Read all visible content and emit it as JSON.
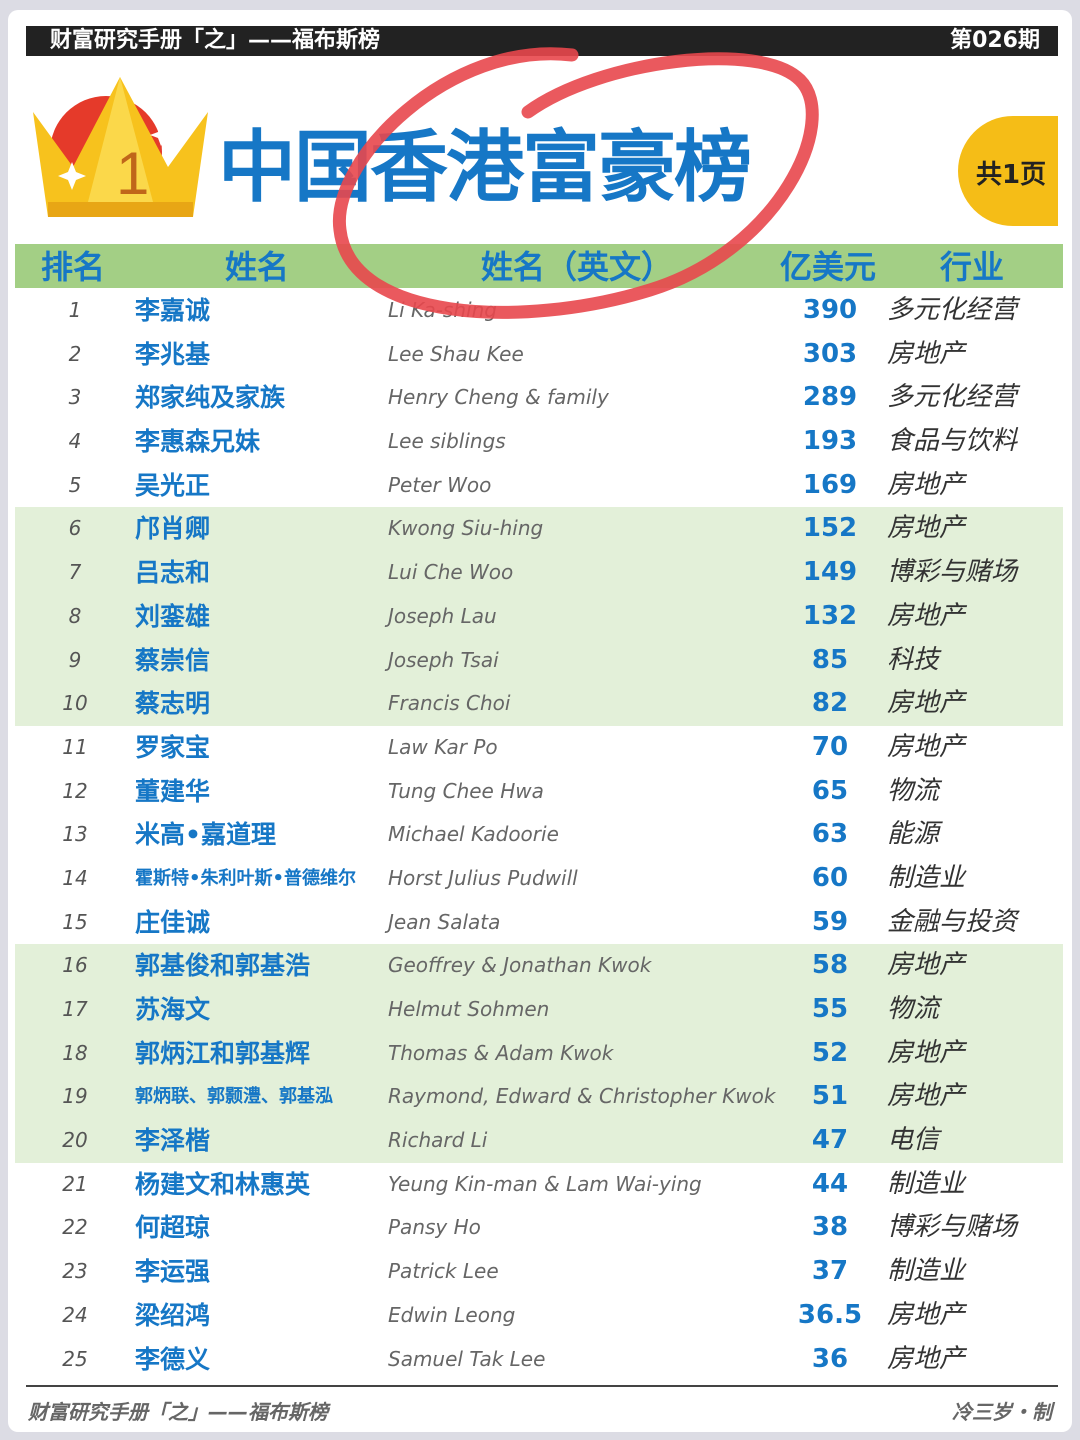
{
  "header": {
    "series": "财富研究手册「之」——福布斯榜",
    "issue": "第026期"
  },
  "title": "中国香港富豪榜",
  "crown_number": "1",
  "pages": "共1页",
  "columns": {
    "rank": "排名",
    "name": "姓名",
    "name_en": "姓名（英文）",
    "value": "亿美元",
    "industry": "行业"
  },
  "colors": {
    "accent_blue": "#1677c6",
    "header_green": "#a3cf85",
    "band_green": "#e3f0d9",
    "badge_yellow": "#f5bd17",
    "annotation_red": "#e8474c"
  },
  "rows": [
    {
      "rank": "1",
      "name": "李嘉诚",
      "name_en": "Li Ka-shing",
      "value": "390",
      "industry": "多元化经营"
    },
    {
      "rank": "2",
      "name": "李兆基",
      "name_en": "Lee Shau Kee",
      "value": "303",
      "industry": "房地产"
    },
    {
      "rank": "3",
      "name": "郑家纯及家族",
      "name_en": "Henry Cheng & family",
      "value": "289",
      "industry": "多元化经营"
    },
    {
      "rank": "4",
      "name": "李惠森兄妹",
      "name_en": "Lee siblings",
      "value": "193",
      "industry": "食品与饮料"
    },
    {
      "rank": "5",
      "name": "吴光正",
      "name_en": "Peter Woo",
      "value": "169",
      "industry": "房地产"
    },
    {
      "rank": "6",
      "name": "邝肖卿",
      "name_en": "Kwong Siu-hing",
      "value": "152",
      "industry": "房地产"
    },
    {
      "rank": "7",
      "name": "吕志和",
      "name_en": "Lui Che Woo",
      "value": "149",
      "industry": "博彩与赌场"
    },
    {
      "rank": "8",
      "name": "刘銮雄",
      "name_en": "Joseph Lau",
      "value": "132",
      "industry": "房地产"
    },
    {
      "rank": "9",
      "name": "蔡崇信",
      "name_en": "Joseph Tsai",
      "value": "85",
      "industry": "科技"
    },
    {
      "rank": "10",
      "name": "蔡志明",
      "name_en": "Francis Choi",
      "value": "82",
      "industry": "房地产"
    },
    {
      "rank": "11",
      "name": "罗家宝",
      "name_en": "Law Kar Po",
      "value": "70",
      "industry": "房地产"
    },
    {
      "rank": "12",
      "name": "董建华",
      "name_en": "Tung Chee Hwa",
      "value": "65",
      "industry": "物流"
    },
    {
      "rank": "13",
      "name": "米高•嘉道理",
      "name_en": "Michael Kadoorie",
      "value": "63",
      "industry": "能源"
    },
    {
      "rank": "14",
      "name": "霍斯特•朱利叶斯•普德维尔",
      "name_en": "Horst Julius Pudwill",
      "value": "60",
      "industry": "制造业"
    },
    {
      "rank": "15",
      "name": "庄佳诚",
      "name_en": "Jean Salata",
      "value": "59",
      "industry": "金融与投资"
    },
    {
      "rank": "16",
      "name": "郭基俊和郭基浩",
      "name_en": "Geoffrey & Jonathan Kwok",
      "value": "58",
      "industry": "房地产"
    },
    {
      "rank": "17",
      "name": "苏海文",
      "name_en": "Helmut Sohmen",
      "value": "55",
      "industry": "物流"
    },
    {
      "rank": "18",
      "name": "郭炳江和郭基辉",
      "name_en": "Thomas & Adam Kwok",
      "value": "52",
      "industry": "房地产"
    },
    {
      "rank": "19",
      "name": "郭炳联、郭颢澧、郭基泓",
      "name_en": "Raymond, Edward & Christopher Kwok",
      "value": "51",
      "industry": "房地产"
    },
    {
      "rank": "20",
      "name": "李泽楷",
      "name_en": "Richard Li",
      "value": "47",
      "industry": "电信"
    },
    {
      "rank": "21",
      "name": "杨建文和林惠英",
      "name_en": "Yeung Kin-man & Lam Wai-ying",
      "value": "44",
      "industry": "制造业"
    },
    {
      "rank": "22",
      "name": "何超琼",
      "name_en": "Pansy Ho",
      "value": "38",
      "industry": "博彩与赌场"
    },
    {
      "rank": "23",
      "name": "李运强",
      "name_en": "Patrick Lee",
      "value": "37",
      "industry": "制造业"
    },
    {
      "rank": "24",
      "name": "梁绍鸿",
      "name_en": "Edwin Leong",
      "value": "36.5",
      "industry": "房地产"
    },
    {
      "rank": "25",
      "name": "李德义",
      "name_en": "Samuel Tak Lee",
      "value": "36",
      "industry": "房地产"
    }
  ],
  "footer": {
    "left": "财富研究手册「之」——福布斯榜",
    "right": "冷三岁・制"
  }
}
